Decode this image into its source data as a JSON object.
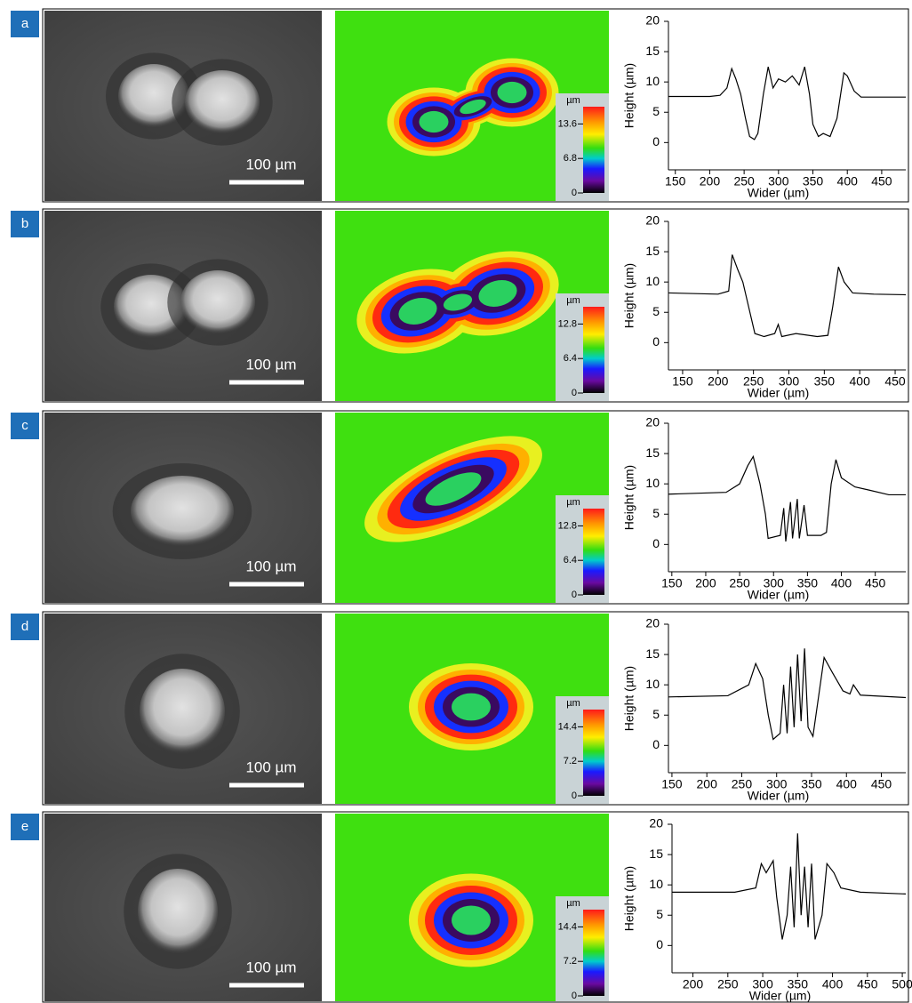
{
  "panels": [
    {
      "label": "a",
      "scale_bar": "100 µm",
      "colorbar": {
        "unit": "µm",
        "range": [
          0,
          17
        ],
        "ticks": [
          0,
          6.8,
          13.6
        ]
      }
    },
    {
      "label": "b",
      "scale_bar": "100 µm",
      "colorbar": {
        "unit": "µm",
        "range": [
          0,
          16
        ],
        "ticks": [
          0,
          6.4,
          12.8
        ]
      }
    },
    {
      "label": "c",
      "scale_bar": "100 µm",
      "colorbar": {
        "unit": "µm",
        "range": [
          0,
          16
        ],
        "ticks": [
          0,
          6.4,
          12.8
        ]
      }
    },
    {
      "label": "d",
      "scale_bar": "100 µm",
      "colorbar": {
        "unit": "µm",
        "range": [
          0,
          18
        ],
        "ticks": [
          0,
          7.2,
          14.4
        ]
      }
    },
    {
      "label": "e",
      "scale_bar": "100 µm",
      "colorbar": {
        "unit": "µm",
        "range": [
          0,
          18
        ],
        "ticks": [
          0,
          7.2,
          14.4
        ]
      }
    }
  ],
  "chart_data": [
    {
      "type": "line",
      "color": "#000000",
      "xlabel": "Wider (µm)",
      "ylabel": "Height (µm)",
      "xlim": [
        140,
        485
      ],
      "xticks": [
        150,
        200,
        250,
        300,
        350,
        400,
        450
      ],
      "ylim": [
        -4.5,
        20
      ],
      "yticks": [
        0,
        5,
        10,
        15,
        20
      ],
      "x": [
        140,
        200,
        215,
        225,
        232,
        238,
        245,
        252,
        258,
        265,
        270,
        278,
        285,
        292,
        300,
        310,
        320,
        330,
        338,
        345,
        350,
        358,
        365,
        375,
        385,
        395,
        400,
        410,
        420,
        450,
        485
      ],
      "values": [
        7.6,
        7.6,
        7.8,
        9,
        12.2,
        10.5,
        8,
        4,
        1,
        0.5,
        1.5,
        8,
        12.5,
        9,
        10.5,
        10,
        11,
        9.5,
        12.5,
        8,
        3,
        1,
        1.5,
        1,
        4,
        11.5,
        11,
        8.5,
        7.5,
        7.5,
        7.5
      ]
    },
    {
      "type": "line",
      "color": "#000000",
      "xlabel": "Wider (µm)",
      "ylabel": "Height (µm)",
      "xlim": [
        130,
        465
      ],
      "xticks": [
        150,
        200,
        250,
        300,
        350,
        400,
        450
      ],
      "ylim": [
        -4.5,
        20
      ],
      "yticks": [
        0,
        5,
        10,
        15,
        20
      ],
      "x": [
        130,
        200,
        215,
        220,
        228,
        235,
        245,
        252,
        265,
        280,
        285,
        290,
        310,
        340,
        355,
        362,
        370,
        378,
        390,
        420,
        465
      ],
      "values": [
        8.2,
        8,
        8.5,
        14.5,
        12,
        10,
        5,
        1.5,
        1,
        1.5,
        3,
        1,
        1.5,
        1,
        1.2,
        6,
        12.5,
        10,
        8.2,
        8,
        7.9
      ]
    },
    {
      "type": "line",
      "color": "#000000",
      "xlabel": "Wider (µm)",
      "ylabel": "Height (µm)",
      "xlim": [
        145,
        495
      ],
      "xticks": [
        150,
        200,
        250,
        300,
        350,
        400,
        450
      ],
      "ylim": [
        -4.5,
        20
      ],
      "yticks": [
        0,
        5,
        10,
        15,
        20
      ],
      "x": [
        145,
        230,
        250,
        262,
        270,
        280,
        288,
        292,
        310,
        315,
        318,
        325,
        328,
        335,
        338,
        345,
        350,
        370,
        378,
        385,
        392,
        400,
        420,
        440,
        470,
        495
      ],
      "values": [
        8.3,
        8.6,
        10,
        13,
        14.5,
        10,
        5,
        1,
        1.5,
        6,
        0.5,
        7,
        1,
        7.5,
        1,
        6.5,
        1.5,
        1.5,
        2,
        10,
        14,
        11,
        9.5,
        9,
        8.2,
        8.2
      ]
    },
    {
      "type": "line",
      "color": "#000000",
      "xlabel": "Wider (µm)",
      "ylabel": "Height (µm)",
      "xlim": [
        145,
        485
      ],
      "xticks": [
        150,
        200,
        250,
        300,
        350,
        400,
        450
      ],
      "ylim": [
        -4.5,
        20
      ],
      "yticks": [
        0,
        5,
        10,
        15,
        20
      ],
      "x": [
        145,
        230,
        260,
        270,
        280,
        288,
        295,
        305,
        310,
        315,
        320,
        325,
        330,
        335,
        340,
        345,
        352,
        360,
        368,
        380,
        395,
        405,
        410,
        420,
        485
      ],
      "values": [
        8,
        8.2,
        10,
        13.5,
        11,
        5,
        1,
        2,
        10,
        2,
        13,
        3,
        15,
        4,
        16,
        3,
        1.5,
        8,
        14.5,
        12,
        9,
        8.5,
        10,
        8.3,
        7.9
      ]
    },
    {
      "type": "line",
      "color": "#000000",
      "xlabel": "Wider (µm)",
      "ylabel": "Height (µm)",
      "xlim": [
        170,
        505
      ],
      "xticks": [
        200,
        250,
        300,
        350,
        400,
        450,
        500
      ],
      "ylim": [
        -4.5,
        20
      ],
      "yticks": [
        0,
        5,
        10,
        15,
        20
      ],
      "x": [
        170,
        260,
        290,
        298,
        305,
        315,
        320,
        328,
        335,
        340,
        345,
        350,
        355,
        360,
        365,
        370,
        375,
        385,
        392,
        402,
        412,
        440,
        505
      ],
      "values": [
        8.8,
        8.8,
        9.5,
        13.5,
        12,
        14,
        8,
        1,
        5,
        13,
        3,
        18.5,
        5,
        13,
        3,
        13.5,
        1,
        5,
        13.5,
        12,
        9.5,
        8.8,
        8.5
      ]
    }
  ]
}
